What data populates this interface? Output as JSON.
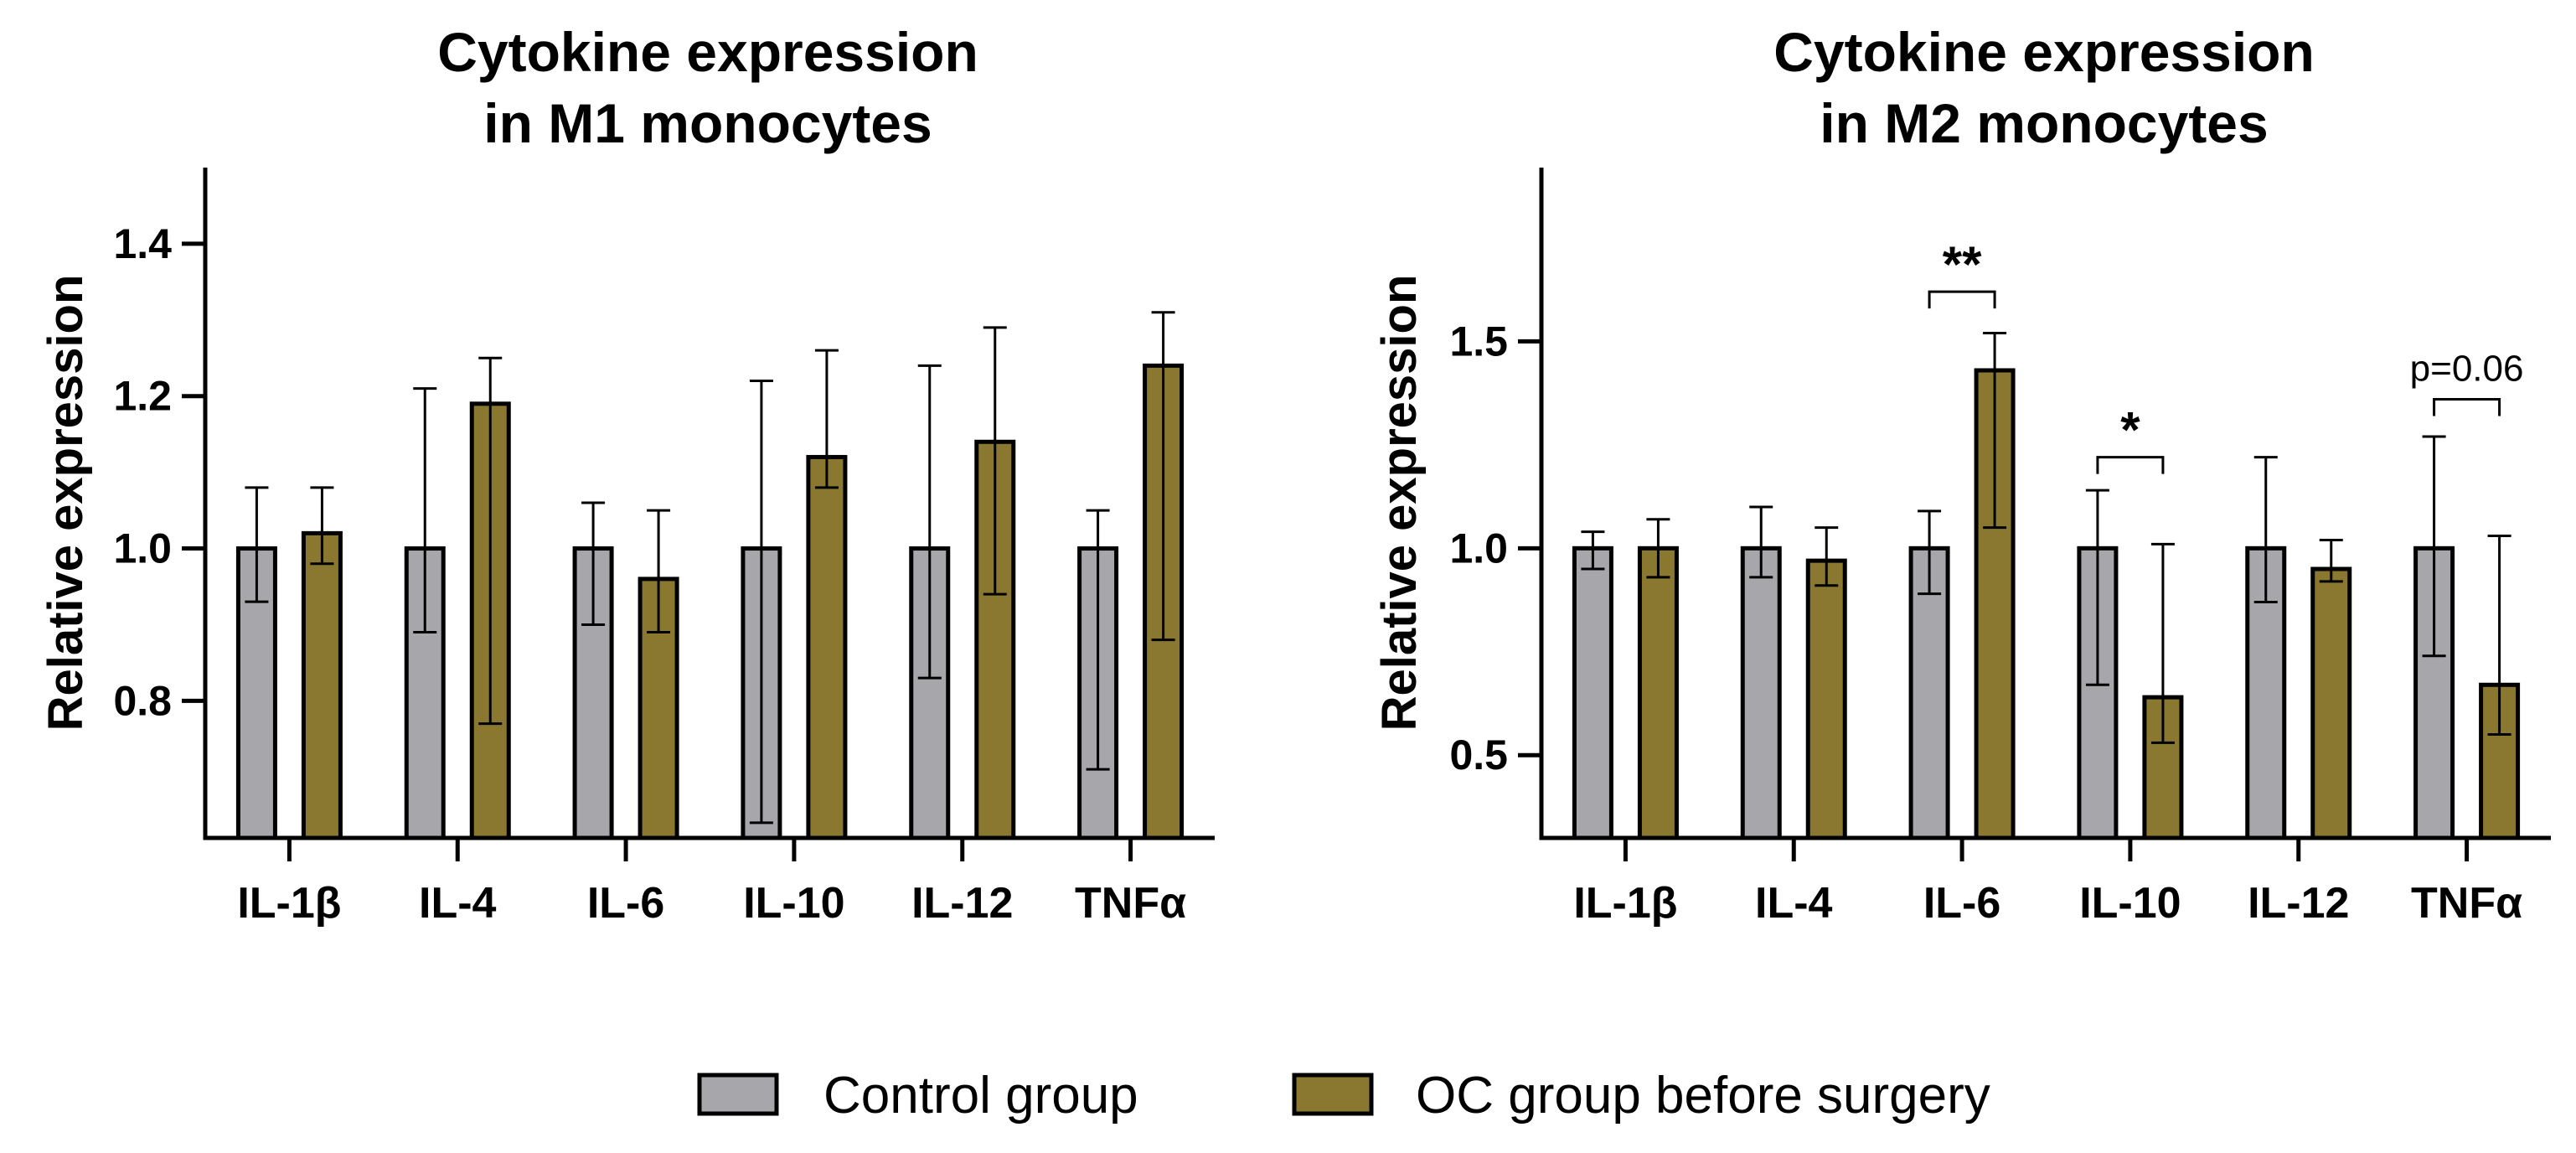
{
  "chart_data": [
    {
      "type": "bar",
      "title": [
        "Cytokine expression",
        "in M1 monocytes"
      ],
      "xlabel": "",
      "ylabel": "Relative expression",
      "ylim": [
        0.62,
        1.5
      ],
      "yticks": [
        0.8,
        1.0,
        1.2,
        1.4
      ],
      "ytick_labels": [
        "0.8",
        "1.0",
        "1.2",
        "1.4"
      ],
      "categories": [
        "IL-1β",
        "IL-4",
        "IL-6",
        "IL-10",
        "IL-12",
        "TNFα"
      ],
      "series": [
        {
          "name": "Control group",
          "values": [
            1.0,
            1.0,
            1.0,
            1.0,
            1.0,
            1.0
          ],
          "err_low": [
            0.93,
            0.89,
            0.9,
            0.64,
            0.83,
            0.71
          ],
          "err_high": [
            1.08,
            1.21,
            1.06,
            1.22,
            1.24,
            1.05
          ]
        },
        {
          "name": "OC group before surgery",
          "values": [
            1.02,
            1.19,
            0.96,
            1.12,
            1.14,
            1.24
          ],
          "err_low": [
            0.98,
            0.77,
            0.89,
            1.08,
            0.94,
            0.88
          ],
          "err_high": [
            1.08,
            1.25,
            1.05,
            1.26,
            1.29,
            1.31
          ]
        }
      ],
      "annotations": []
    },
    {
      "type": "bar",
      "title": [
        "Cytokine expression",
        "in M2 monocytes"
      ],
      "xlabel": "",
      "ylabel": "Relative expression",
      "ylim": [
        0.3,
        1.92
      ],
      "yticks": [
        0.5,
        1.0,
        1.5
      ],
      "ytick_labels": [
        "0.5",
        "1.0",
        "1.5"
      ],
      "categories": [
        "IL-1β",
        "IL-4",
        "IL-6",
        "IL-10",
        "IL-12",
        "TNFα"
      ],
      "series": [
        {
          "name": "Control group",
          "values": [
            1.0,
            1.0,
            1.0,
            1.0,
            1.0,
            1.0
          ],
          "err_low": [
            0.95,
            0.93,
            0.89,
            0.67,
            0.87,
            0.74
          ],
          "err_high": [
            1.04,
            1.1,
            1.09,
            1.14,
            1.22,
            1.27
          ]
        },
        {
          "name": "OC group before surgery",
          "values": [
            1.0,
            0.97,
            1.43,
            0.64,
            0.95,
            0.67
          ],
          "err_low": [
            0.93,
            0.91,
            1.05,
            0.53,
            0.92,
            0.55
          ],
          "err_high": [
            1.07,
            1.05,
            1.52,
            1.01,
            1.02,
            1.03
          ]
        }
      ],
      "annotations": [
        {
          "category_index": 2,
          "label": "**",
          "level": 1.62
        },
        {
          "category_index": 3,
          "label": "*",
          "level": 1.22
        },
        {
          "category_index": 5,
          "label": "p=0.06",
          "level": 1.36
        }
      ]
    }
  ],
  "legend": [
    {
      "label": "Control group",
      "color": "#a6a6ab"
    },
    {
      "label": "OC group before surgery",
      "color": "#8b7830"
    }
  ],
  "colors": {
    "control": "#a6a6ab",
    "oc": "#8b7830",
    "axis": "#000000"
  }
}
